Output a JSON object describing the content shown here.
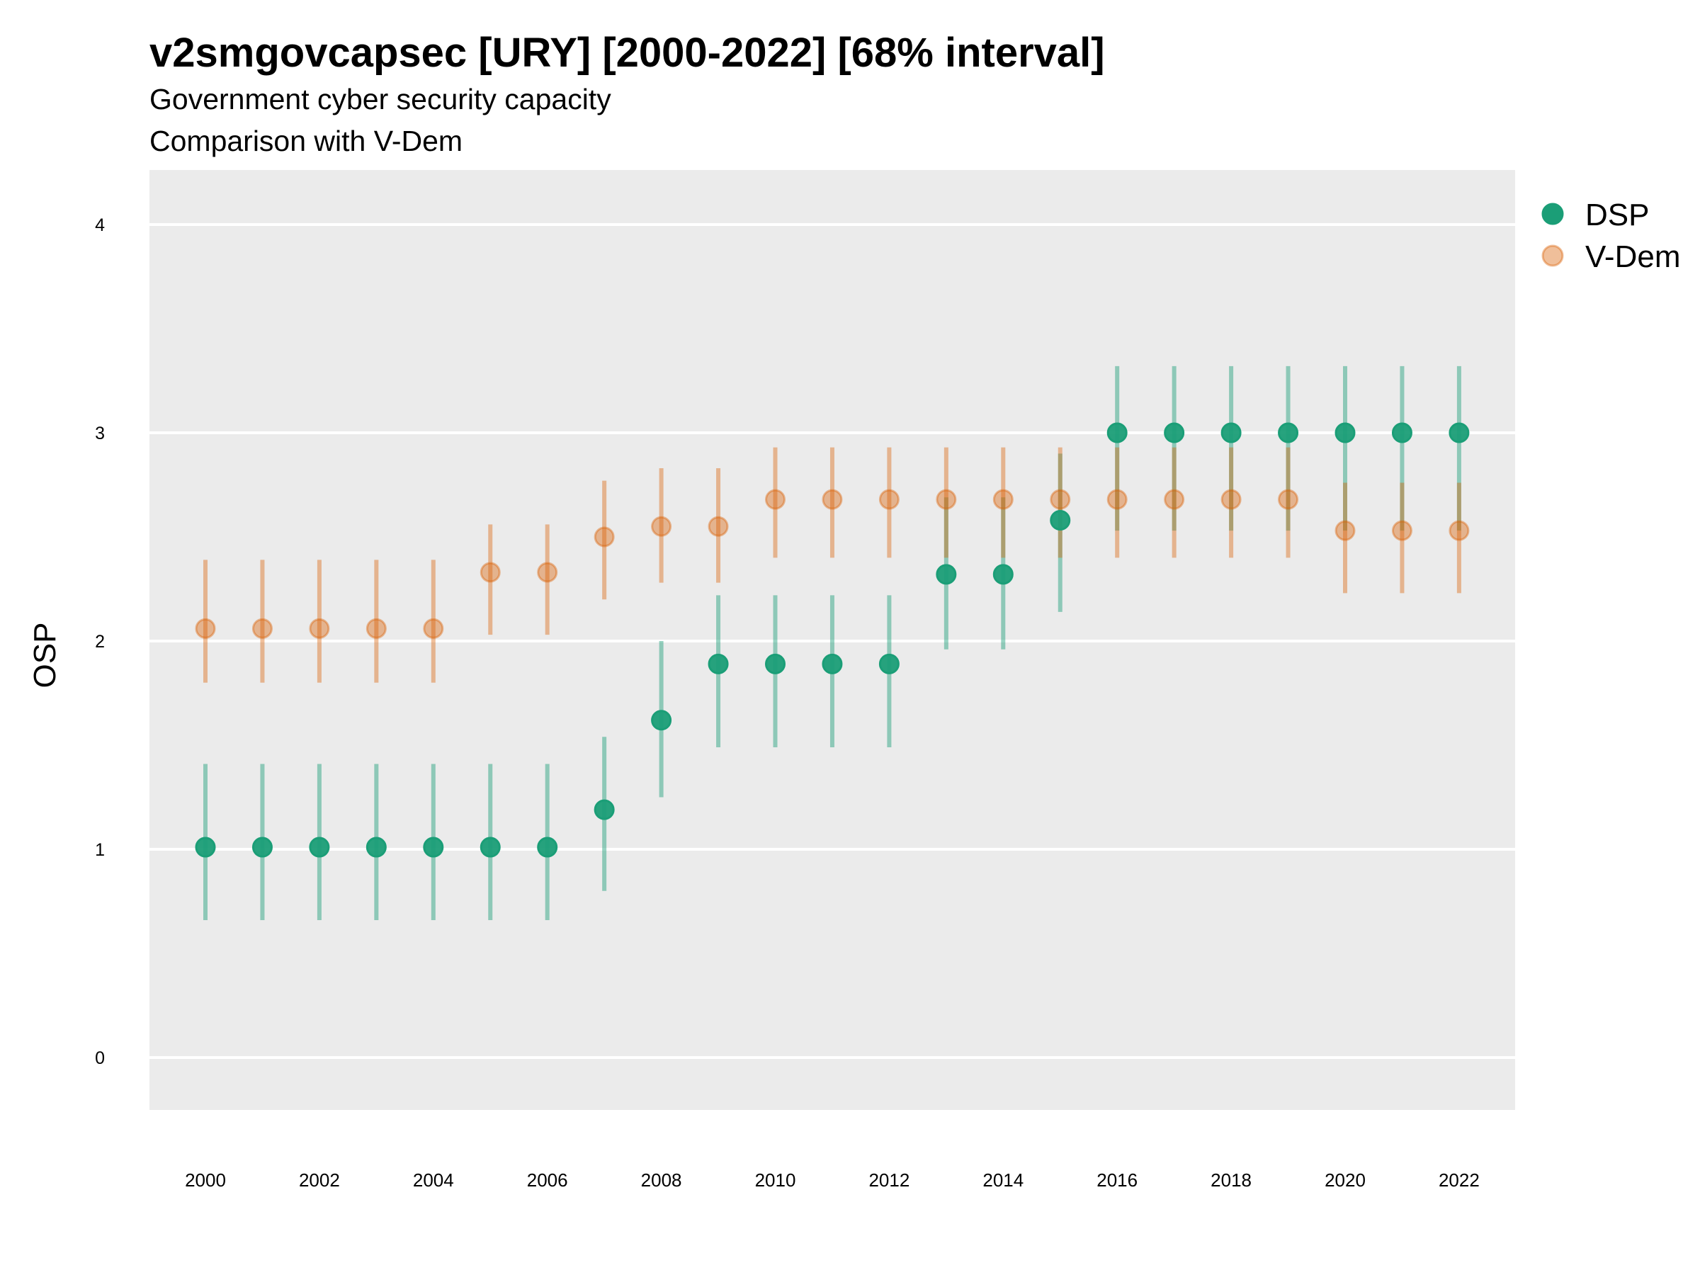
{
  "chart_data": {
    "type": "scatter",
    "title": "v2smgovcapsec [URY] [2000-2022] [68% interval]",
    "subtitle": "Government cyber security capacity",
    "caption_line": "Comparison with V-Dem",
    "xlabel": "",
    "ylabel": "OSP",
    "ylim": [
      -0.25,
      4.25
    ],
    "yticks": [
      0,
      1,
      2,
      3,
      4
    ],
    "xticks": [
      2000,
      2002,
      2004,
      2006,
      2008,
      2010,
      2012,
      2014,
      2016,
      2018,
      2020,
      2022
    ],
    "grid": true,
    "legend_position": "right",
    "series": [
      {
        "name": "DSP",
        "color": "#1b9e77",
        "x": [
          2000,
          2001,
          2002,
          2003,
          2004,
          2005,
          2006,
          2007,
          2008,
          2009,
          2010,
          2011,
          2012,
          2013,
          2014,
          2015,
          2016,
          2017,
          2018,
          2019,
          2020,
          2021,
          2022
        ],
        "y": [
          1.01,
          1.01,
          1.01,
          1.01,
          1.01,
          1.01,
          1.01,
          1.19,
          1.62,
          1.89,
          1.89,
          1.89,
          1.89,
          2.32,
          2.32,
          2.58,
          3.0,
          3.0,
          3.0,
          3.0,
          3.0,
          3.0,
          3.0
        ],
        "lower": [
          0.66,
          0.66,
          0.66,
          0.66,
          0.66,
          0.66,
          0.66,
          0.8,
          1.25,
          1.49,
          1.49,
          1.49,
          1.49,
          1.96,
          1.96,
          2.14,
          2.53,
          2.53,
          2.53,
          2.53,
          2.53,
          2.53,
          2.53
        ],
        "upper": [
          1.41,
          1.41,
          1.41,
          1.41,
          1.41,
          1.41,
          1.41,
          1.54,
          2.0,
          2.22,
          2.22,
          2.22,
          2.22,
          2.69,
          2.69,
          2.9,
          3.32,
          3.32,
          3.32,
          3.32,
          3.32,
          3.32,
          3.32
        ]
      },
      {
        "name": "V-Dem",
        "color": "#d95f02",
        "x": [
          2000,
          2001,
          2002,
          2003,
          2004,
          2005,
          2006,
          2007,
          2008,
          2009,
          2010,
          2011,
          2012,
          2013,
          2014,
          2015,
          2016,
          2017,
          2018,
          2019,
          2020,
          2021,
          2022
        ],
        "y": [
          2.06,
          2.06,
          2.06,
          2.06,
          2.06,
          2.33,
          2.33,
          2.5,
          2.55,
          2.55,
          2.68,
          2.68,
          2.68,
          2.68,
          2.68,
          2.68,
          2.68,
          2.68,
          2.68,
          2.68,
          2.53,
          2.53,
          2.53
        ],
        "lower": [
          1.8,
          1.8,
          1.8,
          1.8,
          1.8,
          2.03,
          2.03,
          2.2,
          2.28,
          2.28,
          2.4,
          2.4,
          2.4,
          2.4,
          2.4,
          2.4,
          2.4,
          2.4,
          2.4,
          2.4,
          2.23,
          2.23,
          2.23
        ],
        "upper": [
          2.39,
          2.39,
          2.39,
          2.39,
          2.39,
          2.56,
          2.56,
          2.77,
          2.83,
          2.83,
          2.93,
          2.93,
          2.93,
          2.93,
          2.93,
          2.93,
          2.93,
          2.93,
          2.93,
          2.93,
          2.76,
          2.76,
          2.76
        ]
      }
    ]
  }
}
